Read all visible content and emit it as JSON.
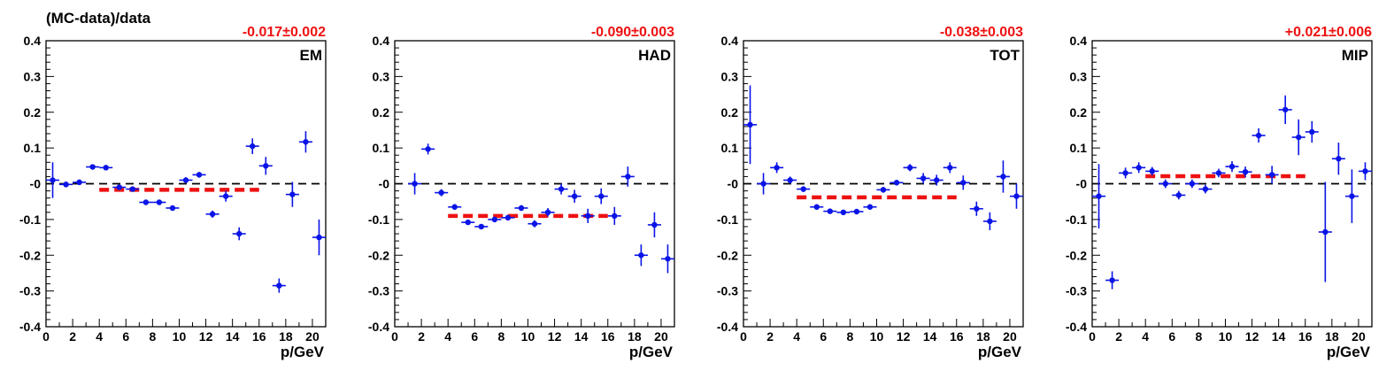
{
  "figure": {
    "ylabel": "(MC-data)/data",
    "xlabel": "p/GeV"
  },
  "colors": {
    "points": "#0a14e6",
    "fit_line": "#ee1111",
    "fit_text": "#ee1111",
    "zero_line": "#000000",
    "axes": "#000000"
  },
  "chart_data": [
    {
      "type": "scatter",
      "label": "EM",
      "fit_text": "-0.017±0.002",
      "xlabel": "p/GeV",
      "xlim": [
        0,
        21
      ],
      "ylim": [
        -0.4,
        0.4
      ],
      "x_ticks": [
        "0",
        "2",
        "4",
        "6",
        "8",
        "10",
        "12",
        "14",
        "16",
        "18",
        "20"
      ],
      "y_ticks": [
        "0.4",
        "0.3",
        "0.2",
        "0.1",
        "-0",
        "-0.1",
        "-0.2",
        "-0.3",
        "-0.4"
      ],
      "fit": {
        "value": -0.017,
        "x_range": [
          4,
          16
        ]
      },
      "points": [
        {
          "x": 0.5,
          "y": 0.01,
          "err": 0.05
        },
        {
          "x": 1.5,
          "y": -0.002,
          "err": 0.008
        },
        {
          "x": 2.5,
          "y": 0.004,
          "err": 0.005
        },
        {
          "x": 3.5,
          "y": 0.047,
          "err": 0.005
        },
        {
          "x": 4.5,
          "y": 0.045,
          "err": 0.005
        },
        {
          "x": 5.5,
          "y": -0.01,
          "err": 0.005
        },
        {
          "x": 6.5,
          "y": -0.015,
          "err": 0.005
        },
        {
          "x": 7.5,
          "y": -0.052,
          "err": 0.005
        },
        {
          "x": 8.5,
          "y": -0.052,
          "err": 0.005
        },
        {
          "x": 9.5,
          "y": -0.068,
          "err": 0.006
        },
        {
          "x": 10.5,
          "y": 0.01,
          "err": 0.008
        },
        {
          "x": 11.5,
          "y": 0.025,
          "err": 0.008
        },
        {
          "x": 12.5,
          "y": -0.085,
          "err": 0.01
        },
        {
          "x": 13.5,
          "y": -0.035,
          "err": 0.015
        },
        {
          "x": 14.5,
          "y": -0.14,
          "err": 0.018
        },
        {
          "x": 15.5,
          "y": 0.105,
          "err": 0.022
        },
        {
          "x": 16.5,
          "y": 0.05,
          "err": 0.025
        },
        {
          "x": 17.5,
          "y": -0.285,
          "err": 0.02
        },
        {
          "x": 18.5,
          "y": -0.03,
          "err": 0.035
        },
        {
          "x": 19.5,
          "y": 0.117,
          "err": 0.03
        },
        {
          "x": 20.5,
          "y": -0.15,
          "err": 0.05
        }
      ]
    },
    {
      "type": "scatter",
      "label": "HAD",
      "fit_text": "-0.090±0.003",
      "xlabel": "p/GeV",
      "xlim": [
        0,
        21
      ],
      "ylim": [
        -0.4,
        0.4
      ],
      "x_ticks": [
        "0",
        "2",
        "4",
        "6",
        "8",
        "10",
        "12",
        "14",
        "16",
        "18",
        "20"
      ],
      "y_ticks": [
        "0.4",
        "0.3",
        "0.2",
        "0.1",
        "-0",
        "-0.1",
        "-0.2",
        "-0.3",
        "-0.4"
      ],
      "fit": {
        "value": -0.09,
        "x_range": [
          4,
          16
        ]
      },
      "points": [
        {
          "x": 1.5,
          "y": 0.0,
          "err": 0.03
        },
        {
          "x": 2.5,
          "y": 0.097,
          "err": 0.015
        },
        {
          "x": 3.5,
          "y": -0.025,
          "err": 0.01
        },
        {
          "x": 4.5,
          "y": -0.065,
          "err": 0.008
        },
        {
          "x": 5.5,
          "y": -0.108,
          "err": 0.006
        },
        {
          "x": 6.5,
          "y": -0.12,
          "err": 0.006
        },
        {
          "x": 7.5,
          "y": -0.1,
          "err": 0.006
        },
        {
          "x": 8.5,
          "y": -0.095,
          "err": 0.008
        },
        {
          "x": 9.5,
          "y": -0.068,
          "err": 0.008
        },
        {
          "x": 10.5,
          "y": -0.112,
          "err": 0.01
        },
        {
          "x": 11.5,
          "y": -0.08,
          "err": 0.012
        },
        {
          "x": 12.5,
          "y": -0.015,
          "err": 0.015
        },
        {
          "x": 13.5,
          "y": -0.035,
          "err": 0.018
        },
        {
          "x": 14.5,
          "y": -0.09,
          "err": 0.02
        },
        {
          "x": 15.5,
          "y": -0.035,
          "err": 0.022
        },
        {
          "x": 16.5,
          "y": -0.09,
          "err": 0.025
        },
        {
          "x": 17.5,
          "y": 0.02,
          "err": 0.028
        },
        {
          "x": 18.5,
          "y": -0.2,
          "err": 0.03
        },
        {
          "x": 19.5,
          "y": -0.115,
          "err": 0.035
        },
        {
          "x": 20.5,
          "y": -0.21,
          "err": 0.04
        }
      ]
    },
    {
      "type": "scatter",
      "label": "TOT",
      "fit_text": "-0.038±0.003",
      "xlabel": "p/GeV",
      "xlim": [
        0,
        21
      ],
      "ylim": [
        -0.4,
        0.4
      ],
      "x_ticks": [
        "0",
        "2",
        "4",
        "6",
        "8",
        "10",
        "12",
        "14",
        "16",
        "18",
        "20"
      ],
      "y_ticks": [
        "0.4",
        "0.3",
        "0.2",
        "0.1",
        "-0",
        "-0.1",
        "-0.2",
        "-0.3",
        "-0.4"
      ],
      "fit": {
        "value": -0.038,
        "x_range": [
          4,
          16
        ]
      },
      "points": [
        {
          "x": 0.5,
          "y": 0.165,
          "err": 0.11
        },
        {
          "x": 1.5,
          "y": 0.0,
          "err": 0.03
        },
        {
          "x": 2.5,
          "y": 0.045,
          "err": 0.015
        },
        {
          "x": 3.5,
          "y": 0.01,
          "err": 0.01
        },
        {
          "x": 4.5,
          "y": -0.015,
          "err": 0.008
        },
        {
          "x": 5.5,
          "y": -0.065,
          "err": 0.006
        },
        {
          "x": 6.5,
          "y": -0.077,
          "err": 0.005
        },
        {
          "x": 7.5,
          "y": -0.08,
          "err": 0.005
        },
        {
          "x": 8.5,
          "y": -0.078,
          "err": 0.005
        },
        {
          "x": 9.5,
          "y": -0.065,
          "err": 0.006
        },
        {
          "x": 10.5,
          "y": -0.017,
          "err": 0.008
        },
        {
          "x": 11.5,
          "y": 0.003,
          "err": 0.008
        },
        {
          "x": 12.5,
          "y": 0.045,
          "err": 0.01
        },
        {
          "x": 13.5,
          "y": 0.015,
          "err": 0.015
        },
        {
          "x": 14.5,
          "y": 0.01,
          "err": 0.015
        },
        {
          "x": 15.5,
          "y": 0.045,
          "err": 0.015
        },
        {
          "x": 16.5,
          "y": 0.003,
          "err": 0.02
        },
        {
          "x": 17.5,
          "y": -0.07,
          "err": 0.02
        },
        {
          "x": 18.5,
          "y": -0.105,
          "err": 0.025
        },
        {
          "x": 19.5,
          "y": 0.02,
          "err": 0.045
        },
        {
          "x": 20.5,
          "y": -0.035,
          "err": 0.035
        }
      ]
    },
    {
      "type": "scatter",
      "label": "MIP",
      "fit_text": "+0.021±0.006",
      "xlabel": "p/GeV",
      "xlim": [
        0,
        21
      ],
      "ylim": [
        -0.4,
        0.4
      ],
      "x_ticks": [
        "0",
        "2",
        "4",
        "6",
        "8",
        "10",
        "12",
        "14",
        "16",
        "18",
        "20"
      ],
      "y_ticks": [
        "0.4",
        "0.3",
        "0.2",
        "0.1",
        "-0",
        "-0.1",
        "-0.2",
        "-0.3",
        "-0.4"
      ],
      "fit": {
        "value": 0.021,
        "x_range": [
          4,
          16
        ]
      },
      "points": [
        {
          "x": 0.5,
          "y": -0.035,
          "err": 0.09
        },
        {
          "x": 1.5,
          "y": -0.27,
          "err": 0.025
        },
        {
          "x": 2.5,
          "y": 0.03,
          "err": 0.015
        },
        {
          "x": 3.5,
          "y": 0.045,
          "err": 0.015
        },
        {
          "x": 4.5,
          "y": 0.035,
          "err": 0.012
        },
        {
          "x": 5.5,
          "y": 0.0,
          "err": 0.012
        },
        {
          "x": 6.5,
          "y": -0.032,
          "err": 0.012
        },
        {
          "x": 7.5,
          "y": 0.0,
          "err": 0.012
        },
        {
          "x": 8.5,
          "y": -0.015,
          "err": 0.012
        },
        {
          "x": 9.5,
          "y": 0.03,
          "err": 0.012
        },
        {
          "x": 10.5,
          "y": 0.048,
          "err": 0.015
        },
        {
          "x": 11.5,
          "y": 0.033,
          "err": 0.015
        },
        {
          "x": 12.5,
          "y": 0.135,
          "err": 0.02
        },
        {
          "x": 13.5,
          "y": 0.025,
          "err": 0.025
        },
        {
          "x": 14.5,
          "y": 0.207,
          "err": 0.04
        },
        {
          "x": 15.5,
          "y": 0.13,
          "err": 0.05
        },
        {
          "x": 16.5,
          "y": 0.145,
          "err": 0.03
        },
        {
          "x": 17.5,
          "y": -0.135,
          "err": 0.14
        },
        {
          "x": 18.5,
          "y": 0.07,
          "err": 0.045
        },
        {
          "x": 19.5,
          "y": -0.035,
          "err": 0.075
        },
        {
          "x": 20.5,
          "y": 0.035,
          "err": 0.025
        }
      ]
    }
  ]
}
